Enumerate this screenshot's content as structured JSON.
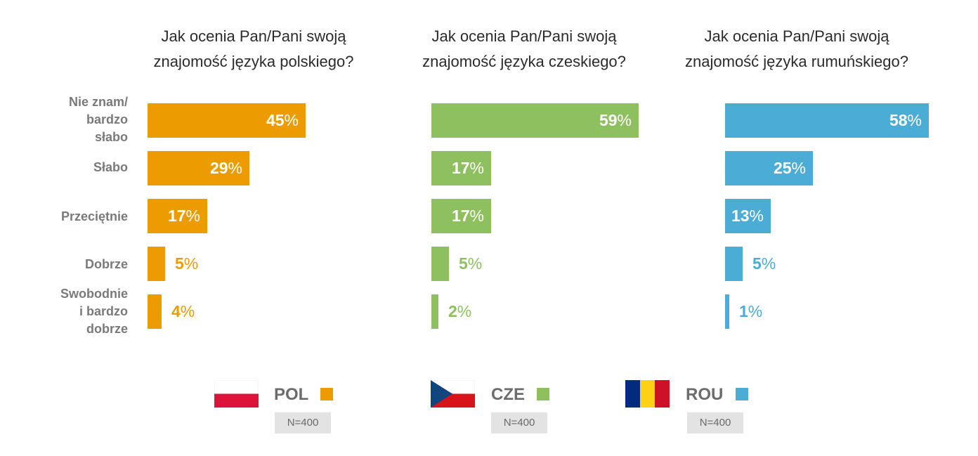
{
  "chart_data": [
    {
      "type": "bar",
      "title": "Jak ocenia Pan/Pani swoją znajomość języka polskiego?",
      "title_lines": [
        "Jak ocenia Pan/Pani swoją",
        "znajomość języka polskiego?"
      ],
      "categories": [
        "Nie znam/ bardzo słabo",
        "Słabo",
        "Przeciętnie",
        "Dobrze",
        "Swobodnie i bardzo dobrze"
      ],
      "values": [
        45,
        29,
        17,
        5,
        4
      ],
      "unit": "%",
      "color": "#ec9c00",
      "orientation": "horizontal"
    },
    {
      "type": "bar",
      "title": "Jak ocenia Pan/Pani swoją znajomość języka czeskiego?",
      "title_lines": [
        "Jak ocenia Pan/Pani swoją",
        "znajomość języka czeskiego?"
      ],
      "categories": [
        "Nie znam/ bardzo słabo",
        "Słabo",
        "Przeciętnie",
        "Dobrze",
        "Swobodnie i bardzo dobrze"
      ],
      "values": [
        59,
        17,
        17,
        5,
        2
      ],
      "unit": "%",
      "color": "#8ec05f",
      "orientation": "horizontal"
    },
    {
      "type": "bar",
      "title": "Jak ocenia Pan/Pani swoją znajomość języka rumuńskiego?",
      "title_lines": [
        "Jak ocenia Pan/Pani swoją",
        "znajomość języka rumuńskiego?"
      ],
      "categories": [
        "Nie znam/ bardzo słabo",
        "Słabo",
        "Przeciętnie",
        "Dobrze",
        "Swobodnie i bardzo dobrze"
      ],
      "values": [
        58,
        25,
        13,
        5,
        1
      ],
      "unit": "%",
      "color": "#4bacd6",
      "orientation": "horizontal"
    }
  ],
  "row_labels": [
    [
      "Nie znam/",
      "bardzo",
      "słabo"
    ],
    [
      "Słabo"
    ],
    [
      "Przeciętnie"
    ],
    [
      "Dobrze"
    ],
    [
      "Swobodnie",
      "i bardzo",
      "dobrze"
    ]
  ],
  "legend": [
    {
      "code": "POL",
      "n": "N=400",
      "color": "#ec9c00",
      "flag": "poland-flag"
    },
    {
      "code": "CZE",
      "n": "N=400",
      "color": "#8ec05f",
      "flag": "czech-flag"
    },
    {
      "code": "ROU",
      "n": "N=400",
      "color": "#4bacd6",
      "flag": "romania-flag"
    }
  ]
}
